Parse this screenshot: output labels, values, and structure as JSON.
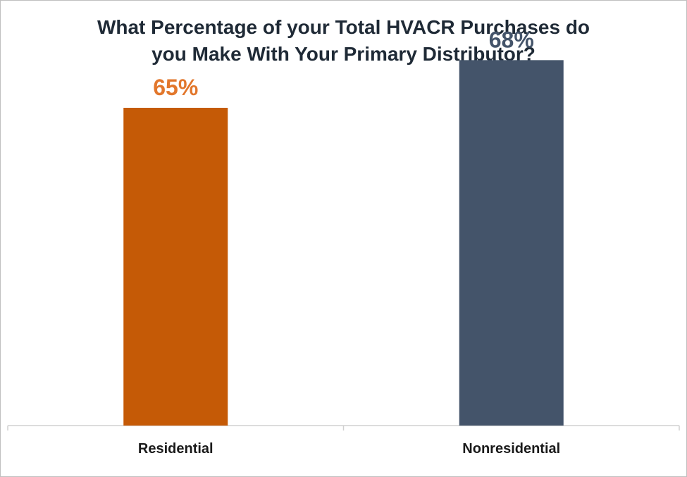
{
  "chart_data": {
    "type": "bar",
    "title_lines": [
      "What Percentage of your Total HVACR Purchases do",
      "you Make With Your Primary Distributor?"
    ],
    "categories": [
      "Residential",
      "Nonresidential"
    ],
    "values": [
      65,
      68
    ],
    "value_labels": [
      "65%",
      "68%"
    ],
    "colors": [
      "#c55a06",
      "#44546a"
    ],
    "label_colors": [
      "#e2772c",
      "#44546a"
    ],
    "ylim": [
      45,
      70
    ],
    "grid": false,
    "legend": "none"
  }
}
